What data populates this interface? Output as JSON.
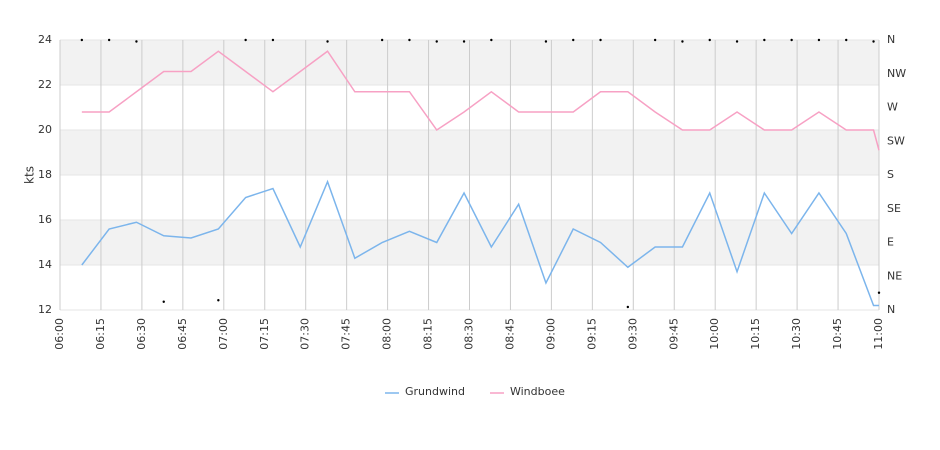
{
  "chart_data": {
    "type": "line",
    "y_label": "kts",
    "x": [
      "06:08",
      "06:18",
      "06:28",
      "06:38",
      "06:48",
      "06:58",
      "07:08",
      "07:18",
      "07:28",
      "07:38",
      "07:48",
      "07:58",
      "08:08",
      "08:18",
      "08:28",
      "08:38",
      "08:48",
      "08:58",
      "09:08",
      "09:18",
      "09:28",
      "09:38",
      "09:48",
      "09:58",
      "10:08",
      "10:18",
      "10:28",
      "10:38",
      "10:48",
      "10:58",
      "11:00"
    ],
    "xlim": [
      "06:00",
      "11:00"
    ],
    "xticks": [
      "06:00",
      "06:15",
      "06:30",
      "06:45",
      "07:00",
      "07:15",
      "07:30",
      "07:45",
      "08:00",
      "08:15",
      "08:30",
      "08:45",
      "09:00",
      "09:15",
      "09:30",
      "09:45",
      "10:00",
      "10:15",
      "10:30",
      "10:45",
      "11:00"
    ],
    "ylim": [
      12,
      24
    ],
    "yticks": [
      12,
      14,
      16,
      18,
      20,
      22,
      24
    ],
    "y2lim": [
      0,
      360
    ],
    "y2ticks": [
      {
        "value": 0,
        "label": "N"
      },
      {
        "value": 45,
        "label": "NE"
      },
      {
        "value": 90,
        "label": "E"
      },
      {
        "value": 135,
        "label": "SE"
      },
      {
        "value": 180,
        "label": "S"
      },
      {
        "value": 225,
        "label": "SW"
      },
      {
        "value": 270,
        "label": "W"
      },
      {
        "value": 315,
        "label": "NW"
      },
      {
        "value": 360,
        "label": "N"
      }
    ],
    "grid": true,
    "legend": "bottom",
    "series": [
      {
        "name": "Grundwind",
        "color": "#7cb5ec",
        "values": [
          14.0,
          15.6,
          15.9,
          15.3,
          15.2,
          15.6,
          17.0,
          17.4,
          14.8,
          17.7,
          14.3,
          15.0,
          15.5,
          15.0,
          17.2,
          14.8,
          16.7,
          13.2,
          15.6,
          15.0,
          13.9,
          14.8,
          14.8,
          17.2,
          13.7,
          17.2,
          15.4,
          17.2,
          15.4,
          12.2,
          12.2
        ]
      },
      {
        "name": "Windboee",
        "color": "#f7a1c4",
        "values": [
          20.8,
          20.8,
          21.7,
          22.6,
          22.6,
          23.5,
          22.6,
          21.7,
          22.6,
          23.5,
          21.7,
          21.7,
          21.7,
          20.0,
          20.8,
          21.7,
          20.8,
          20.8,
          20.8,
          21.7,
          21.7,
          20.8,
          20.0,
          20.0,
          20.8,
          20.0,
          20.0,
          20.8,
          20.0,
          20.0,
          19.1
        ]
      },
      {
        "color": "#000000",
        "axis": "y2",
        "markers_only": true,
        "values": [
          360,
          360,
          358,
          11,
          null,
          13,
          360,
          360,
          null,
          358,
          null,
          360,
          360,
          358,
          358,
          360,
          null,
          358,
          360,
          360,
          4,
          360,
          358,
          360,
          358,
          360,
          360,
          360,
          360,
          358,
          23
        ]
      }
    ]
  }
}
